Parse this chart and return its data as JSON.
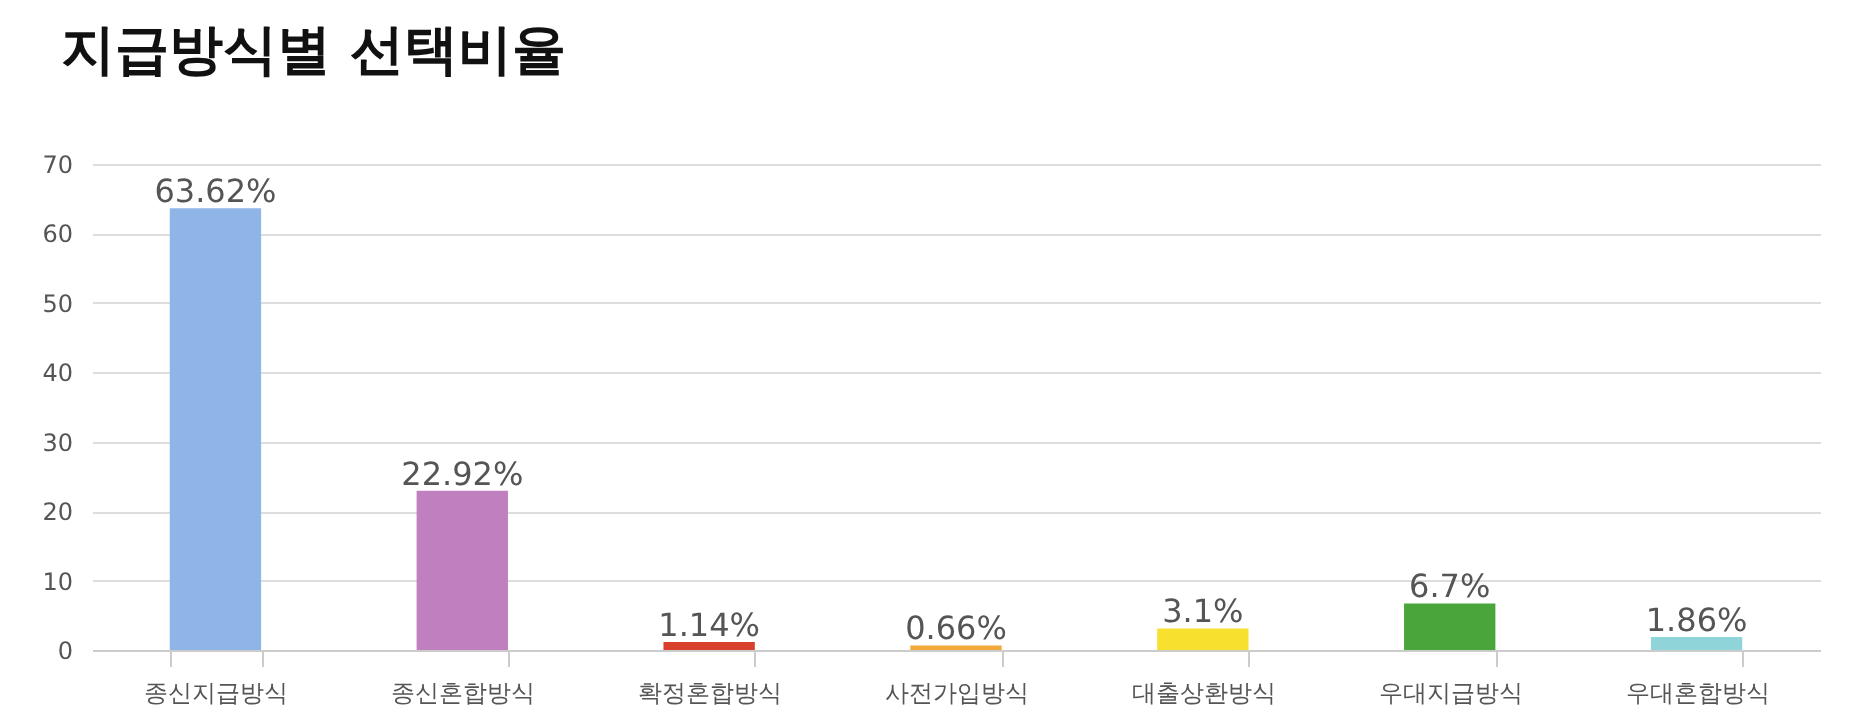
{
  "chart_data": {
    "type": "bar",
    "title": "지급방식별 선택비율",
    "categories": [
      "종신지급방식",
      "종신혼합방식",
      "확정혼합방식",
      "사전가입방식",
      "대출상환방식",
      "우대지급방식",
      "우대혼합방식"
    ],
    "values": [
      63.62,
      22.92,
      1.14,
      0.66,
      3.1,
      6.7,
      1.86
    ],
    "colors": [
      "#8fb5e6",
      "#c080c0",
      "#d9402b",
      "#f2a93b",
      "#f7e02e",
      "#4aa53a",
      "#8fd4d8"
    ],
    "value_labels": [
      "63.62%",
      "22.92%",
      "1.14%",
      "0.66%",
      "3.1%",
      "6.7%",
      "1.86%"
    ],
    "ylim": [
      0,
      70
    ],
    "yticks": [
      0,
      10,
      20,
      30,
      40,
      50,
      60,
      70
    ],
    "grid": "y"
  }
}
